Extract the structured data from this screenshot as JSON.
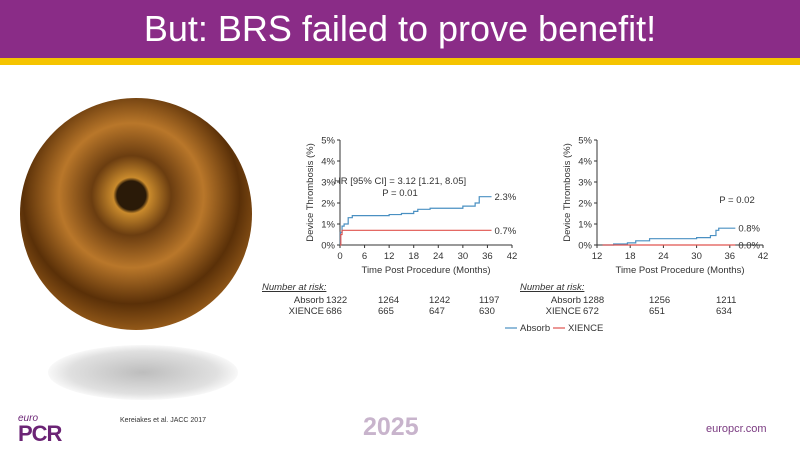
{
  "title": "But: BRS failed to prove benefit!",
  "citation": "Kereiakes et al. JACC 2017",
  "year": "2025",
  "website": "europcr.com",
  "logo": {
    "small": "euro",
    "big": "PCR"
  },
  "colors": {
    "absorb": "#4a90c2",
    "xience": "#e0544f",
    "brand": "#8a2c87",
    "accent": "#f5c400"
  },
  "legend": {
    "absorb": "Absorb",
    "xience": "XIENCE"
  },
  "chart_data": [
    {
      "type": "line",
      "ylabel": "Device Thrombosis (%)",
      "xlabel": "Time Post Procedure (Months)",
      "xlim": [
        0,
        42
      ],
      "ylim": [
        0,
        5
      ],
      "xticks": [
        "0",
        "6",
        "12",
        "18",
        "24",
        "30",
        "36",
        "42"
      ],
      "yticks": [
        "0%",
        "1%",
        "2%",
        "3%",
        "4%",
        "5%"
      ],
      "annotation": [
        "HR [95% CI] = 3.12 [1.21, 8.05]",
        "P = 0.01"
      ],
      "end_labels": {
        "absorb": "2.3%",
        "xience": "0.7%"
      },
      "series": [
        {
          "name": "Absorb",
          "x": [
            0,
            0.1,
            0.5,
            1,
            2,
            3,
            12,
            15,
            18,
            19,
            22,
            30,
            33,
            34,
            37
          ],
          "y": [
            0,
            0.6,
            0.9,
            1.0,
            1.3,
            1.4,
            1.45,
            1.5,
            1.6,
            1.7,
            1.75,
            1.85,
            2.0,
            2.3,
            2.3
          ]
        },
        {
          "name": "XIENCE",
          "x": [
            0,
            0.2,
            0.5,
            37
          ],
          "y": [
            0,
            0.5,
            0.7,
            0.7
          ]
        }
      ],
      "risk": {
        "label": "Number at risk:",
        "rows": [
          {
            "name": "Absorb",
            "values": [
              "1322",
              "1264",
              "1242",
              "1197"
            ]
          },
          {
            "name": "XIENCE",
            "values": [
              "686",
              "665",
              "647",
              "630"
            ]
          }
        ]
      }
    },
    {
      "type": "line",
      "ylabel": "Device Thrombosis (%)",
      "xlabel": "Time Post Procedure (Months)",
      "xlim": [
        12,
        42
      ],
      "ylim": [
        0,
        5
      ],
      "xticks": [
        "12",
        "18",
        "24",
        "30",
        "36",
        "42"
      ],
      "yticks": [
        "0%",
        "1%",
        "2%",
        "3%",
        "4%",
        "5%"
      ],
      "annotation": [
        "P = 0.02"
      ],
      "end_labels": {
        "absorb": "0.8%",
        "xience": "0.0%"
      },
      "series": [
        {
          "name": "Absorb",
          "x": [
            13,
            15,
            17.5,
            19,
            21.5,
            30,
            32.5,
            33.5,
            34,
            37
          ],
          "y": [
            0,
            0.05,
            0.1,
            0.2,
            0.3,
            0.35,
            0.45,
            0.7,
            0.8,
            0.8
          ]
        },
        {
          "name": "XIENCE",
          "x": [
            13,
            37
          ],
          "y": [
            0,
            0
          ]
        }
      ],
      "risk": {
        "label": "Number at risk:",
        "rows": [
          {
            "name": "Absorb",
            "values": [
              "1288",
              "1256",
              "1211"
            ]
          },
          {
            "name": "XIENCE",
            "values": [
              "672",
              "651",
              "634"
            ]
          }
        ]
      }
    }
  ]
}
